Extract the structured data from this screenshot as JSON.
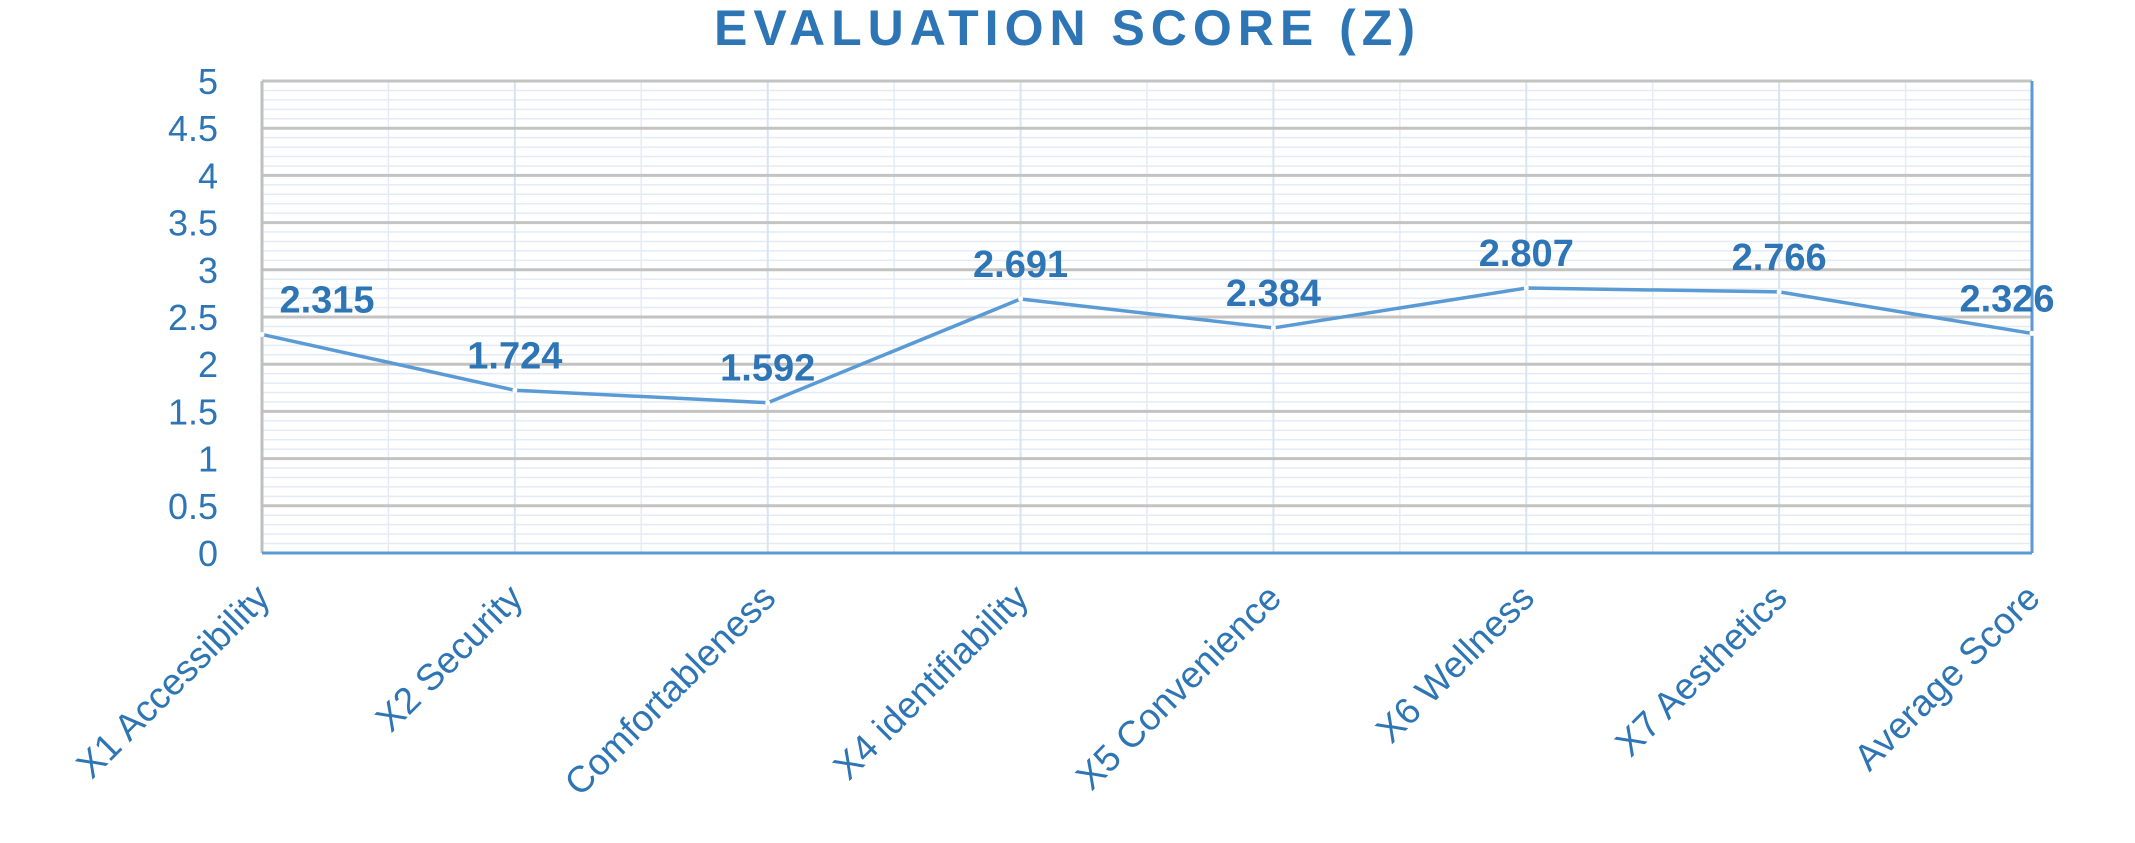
{
  "chart_data": {
    "type": "line",
    "title": "EVALUATION SCORE (Z)",
    "categories": [
      "X1 Accessibility",
      "X2 Security",
      "Comfortableness",
      "X4 identifiability",
      "X5 Convenience",
      "X6 Wellness",
      "X7 Aesthetics",
      "Average  Score"
    ],
    "series": [
      {
        "values": [
          2.315,
          1.724,
          1.592,
          2.691,
          2.384,
          2.807,
          2.766,
          2.326
        ],
        "data_labels": [
          "2.315",
          "1.724",
          "1.592",
          "2.691",
          "2.384",
          "2.807",
          "2.766",
          "2.326"
        ]
      }
    ],
    "y_ticks": [
      "0",
      "0.5",
      "1",
      "1.5",
      "2",
      "2.5",
      "3",
      "3.5",
      "4",
      "4.5",
      "5"
    ],
    "ylim": [
      0,
      5
    ],
    "xlabel": "",
    "ylabel": "",
    "grid": true,
    "legend": "none",
    "colors": {
      "text": "#2E75B6",
      "line": "#5B9BD5",
      "axis": "#5B9BD5",
      "major_grid": "#C3C3C3",
      "minor_grid": "#E3ECF6"
    }
  }
}
